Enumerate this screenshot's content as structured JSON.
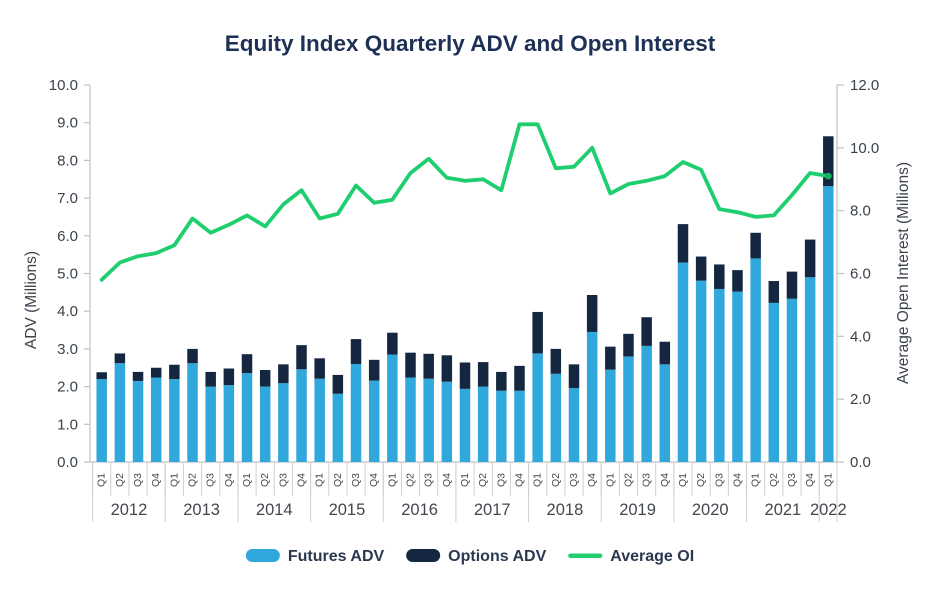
{
  "title": "Equity Index Quarterly ADV and Open Interest",
  "left_axis": {
    "label": "ADV (Millions)",
    "min": 0,
    "max": 10,
    "step": 1,
    "tick_decimals": 1
  },
  "right_axis": {
    "label": "Average Open Interest (Millions)",
    "min": 0,
    "max": 12,
    "step": 2,
    "tick_decimals": 1
  },
  "legend": [
    {
      "label": "Futures ADV",
      "swatch": "bar",
      "color": "#31a8db"
    },
    {
      "label": "Options ADV",
      "swatch": "bar",
      "color": "#152740"
    },
    {
      "label": "Average OI",
      "swatch": "line",
      "color": "#1fce6e"
    }
  ],
  "colors": {
    "futures": "#31a8db",
    "options": "#152740",
    "oi_line": "#1fce6e",
    "oi_marker": "#13b25f",
    "title_text": "#1d3056",
    "axis_text": "#3a424c",
    "category_text": "#43484e",
    "legend_text": "#2b3850",
    "axis_line": "#c2c2c2",
    "separator": "#cfcfcf"
  },
  "chart_data": {
    "type": "bar",
    "subtype": "stacked-bars-with-line",
    "grid": "off",
    "legend_position": "bottom-center",
    "years": [
      {
        "year": "2012",
        "quarters": [
          "Q1",
          "Q2",
          "Q3",
          "Q4"
        ]
      },
      {
        "year": "2013",
        "quarters": [
          "Q1",
          "Q2",
          "Q3",
          "Q4"
        ]
      },
      {
        "year": "2014",
        "quarters": [
          "Q1",
          "Q2",
          "Q3",
          "Q4"
        ]
      },
      {
        "year": "2015",
        "quarters": [
          "Q1",
          "Q2",
          "Q3",
          "Q4"
        ]
      },
      {
        "year": "2016",
        "quarters": [
          "Q1",
          "Q2",
          "Q3",
          "Q4"
        ]
      },
      {
        "year": "2017",
        "quarters": [
          "Q1",
          "Q2",
          "Q3",
          "Q4"
        ]
      },
      {
        "year": "2018",
        "quarters": [
          "Q1",
          "Q2",
          "Q3",
          "Q4"
        ]
      },
      {
        "year": "2019",
        "quarters": [
          "Q1",
          "Q2",
          "Q3",
          "Q4"
        ]
      },
      {
        "year": "2020",
        "quarters": [
          "Q1",
          "Q2",
          "Q3",
          "Q4"
        ]
      },
      {
        "year": "2021",
        "quarters": [
          "Q1",
          "Q2",
          "Q3",
          "Q4"
        ]
      },
      {
        "year": "2022",
        "quarters": [
          "Q1"
        ]
      }
    ],
    "series": [
      {
        "name": "Futures ADV",
        "type": "bar",
        "stack": "adv",
        "axis": "left",
        "color": "#31a8db",
        "values": [
          2.2,
          2.62,
          2.15,
          2.24,
          2.2,
          2.62,
          2.0,
          2.04,
          2.36,
          2.0,
          2.09,
          2.46,
          2.21,
          1.81,
          2.6,
          2.16,
          2.85,
          2.24,
          2.21,
          2.13,
          1.94,
          2.0,
          1.89,
          1.89,
          2.88,
          2.34,
          1.96,
          3.45,
          2.45,
          2.8,
          3.08,
          2.59,
          5.29,
          4.81,
          4.59,
          4.52,
          5.4,
          4.22,
          4.33,
          4.9,
          7.32
        ]
      },
      {
        "name": "Options ADV",
        "type": "bar",
        "stack": "adv",
        "axis": "left",
        "color": "#152740",
        "values": [
          0.18,
          0.26,
          0.24,
          0.26,
          0.38,
          0.38,
          0.39,
          0.44,
          0.5,
          0.44,
          0.5,
          0.64,
          0.54,
          0.5,
          0.66,
          0.55,
          0.58,
          0.66,
          0.66,
          0.7,
          0.7,
          0.65,
          0.5,
          0.66,
          1.1,
          0.66,
          0.63,
          0.98,
          0.61,
          0.6,
          0.76,
          0.6,
          1.02,
          0.64,
          0.65,
          0.57,
          0.68,
          0.58,
          0.72,
          1.0,
          1.32
        ]
      },
      {
        "name": "Average OI",
        "type": "line",
        "axis": "right",
        "color": "#1fce6e",
        "end_marker": true,
        "values": [
          5.8,
          6.35,
          6.55,
          6.65,
          6.9,
          7.75,
          7.3,
          7.55,
          7.85,
          7.5,
          8.2,
          8.65,
          7.75,
          7.9,
          8.8,
          8.25,
          8.35,
          9.2,
          9.65,
          9.05,
          8.95,
          9.0,
          8.65,
          10.75,
          10.75,
          9.35,
          9.4,
          10.0,
          8.55,
          8.85,
          8.95,
          9.1,
          9.55,
          9.3,
          8.05,
          7.95,
          7.8,
          7.85,
          8.5,
          9.2,
          9.1
        ]
      }
    ]
  }
}
